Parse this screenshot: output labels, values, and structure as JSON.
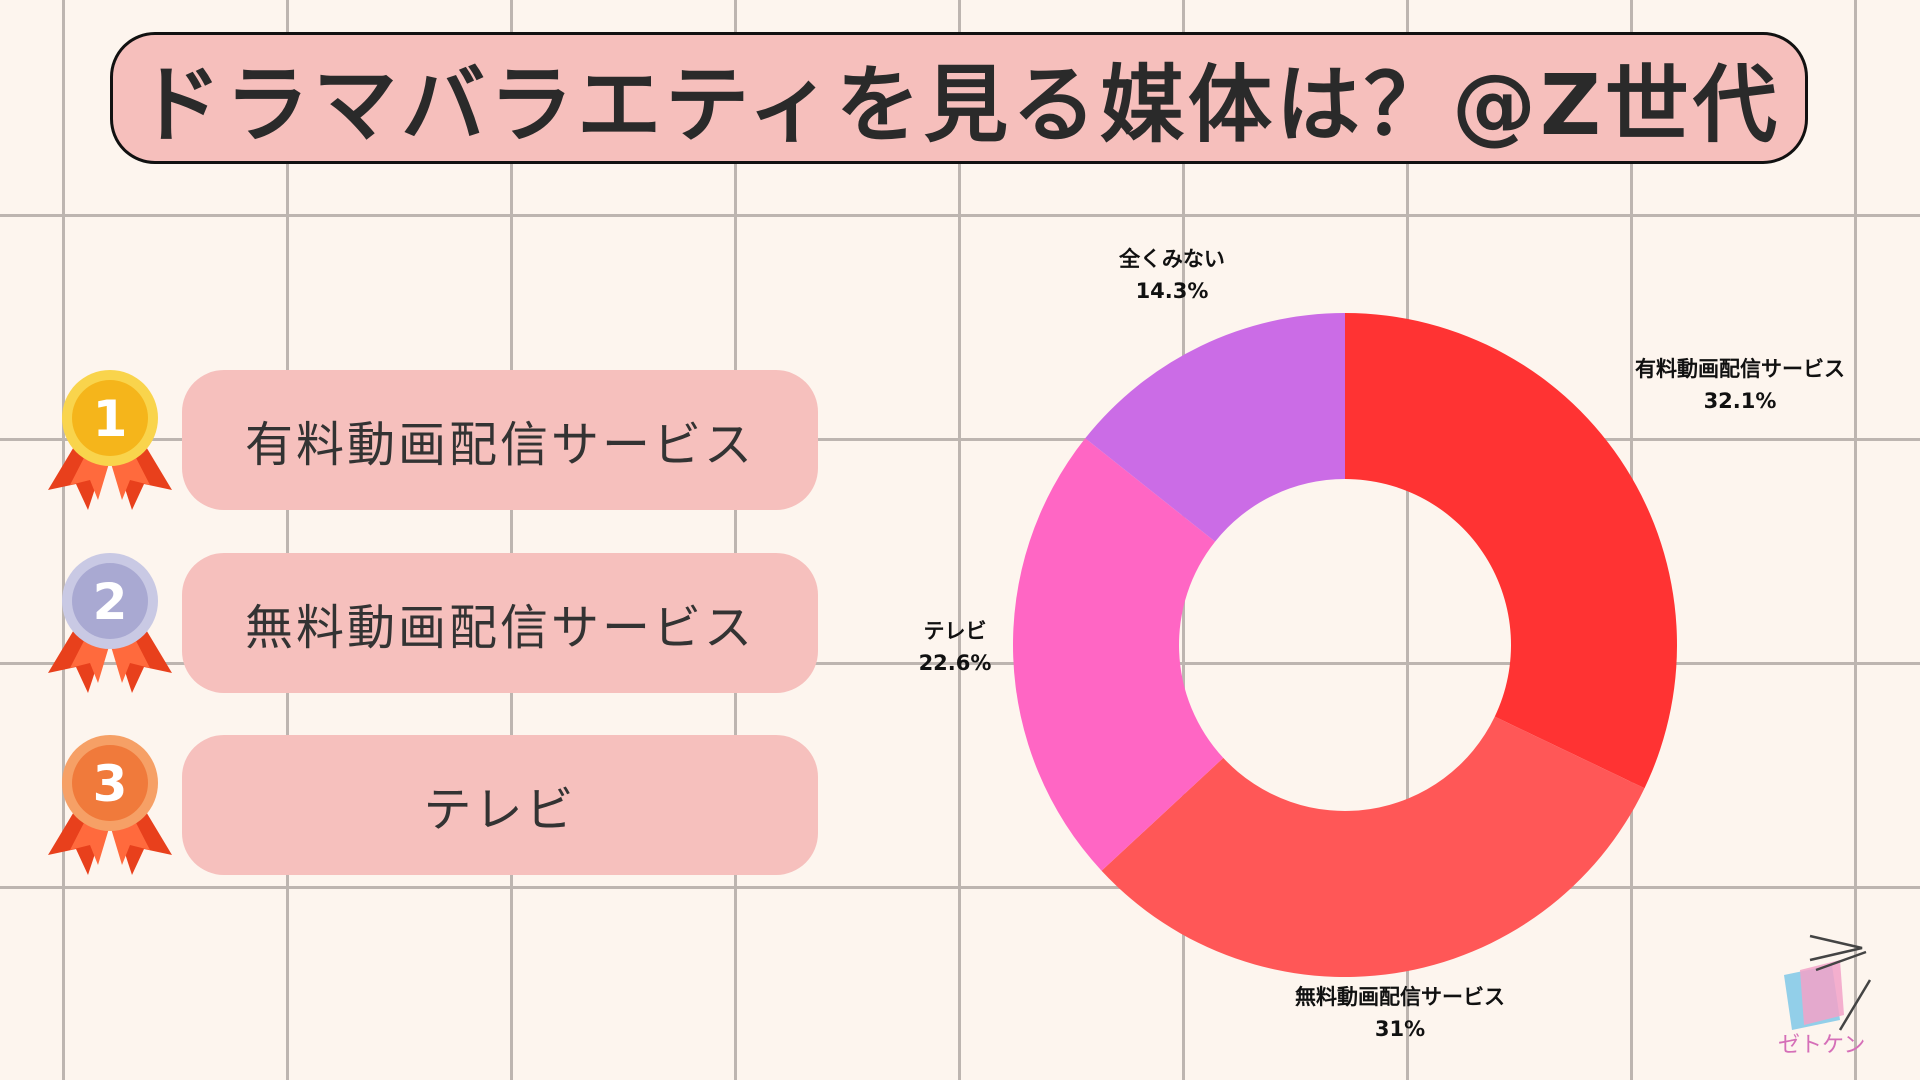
{
  "title": "ドラマバラエティを見る媒体は？@Z世代",
  "ranking": [
    {
      "rank": "1",
      "label": "有料動画配信サービス",
      "medal_color": "#f5b51b",
      "medal_ring": "#f9d44c"
    },
    {
      "rank": "2",
      "label": "無料動画配信サービス",
      "medal_color": "#a9a9d2",
      "medal_ring": "#c9c9e4"
    },
    {
      "rank": "3",
      "label": "テレビ",
      "medal_color": "#f07a3b",
      "medal_ring": "#f6a066"
    }
  ],
  "chart_data": {
    "type": "pie",
    "style": "donut",
    "categories": [
      "有料動画配信サービス",
      "無料動画配信サービス",
      "テレビ",
      "全くみない"
    ],
    "values": [
      32.1,
      31,
      22.6,
      14.3
    ],
    "value_labels": [
      "32.1%",
      "31%",
      "22.6%",
      "14.3%"
    ],
    "colors": [
      "#ff3333",
      "#ff5757",
      "#ff66c4",
      "#cb6ce6"
    ]
  },
  "logo": {
    "text": "ゼトケン"
  }
}
